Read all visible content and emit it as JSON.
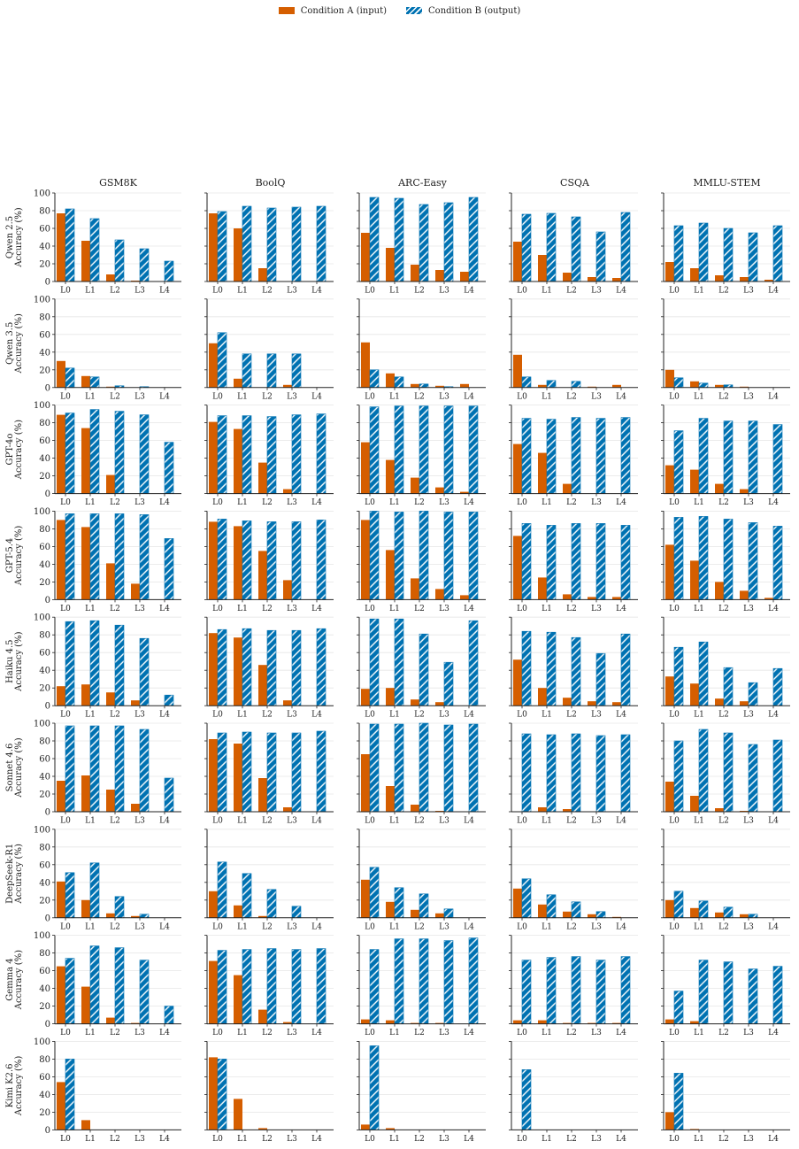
{
  "legend": {
    "a_label": "Condition A (input)",
    "b_label": "Condition B (output)"
  },
  "colors": {
    "a": "#d55e00",
    "b": "#0072b2",
    "grid": "#e6e6e6",
    "axis": "#222222"
  },
  "chart_data": {
    "type": "bar",
    "layout": "small-multiples grid, rows = models, columns = benchmarks, grouped bars",
    "ylabel": "Accuracy (%)",
    "ylim": [
      0,
      100
    ],
    "yticks": [
      "0",
      "20",
      "40",
      "60",
      "80",
      "100"
    ],
    "grid": true,
    "legend_position": "top-center",
    "categories": [
      "L0",
      "L1",
      "L2",
      "L3",
      "L4"
    ],
    "columns": [
      "GSM8K",
      "BoolQ",
      "ARC-Easy",
      "CSQA",
      "MMLU-STEM"
    ],
    "rows": [
      "Qwen 2.5",
      "Qwen 3.5",
      "GPT-4o",
      "GPT-5.4",
      "Haiku 4.5",
      "Sonnet 4.6",
      "DeepSeek-R1",
      "Gemma 4",
      "Kimi K2.6"
    ],
    "series_names": [
      "Condition A (input)",
      "Condition B (output)"
    ],
    "panels": [
      [
        {
          "a": [
            77,
            46,
            8,
            1,
            0
          ],
          "b": [
            82,
            71,
            47,
            37,
            23
          ]
        },
        {
          "a": [
            77,
            60,
            15,
            0,
            0
          ],
          "b": [
            79,
            85,
            83,
            84,
            85
          ]
        },
        {
          "a": [
            55,
            38,
            19,
            13,
            11
          ],
          "b": [
            95,
            94,
            87,
            89,
            95
          ]
        },
        {
          "a": [
            45,
            30,
            10,
            5,
            4
          ],
          "b": [
            76,
            77,
            73,
            56,
            78
          ]
        },
        {
          "a": [
            22,
            15,
            7,
            5,
            2
          ],
          "b": [
            63,
            66,
            60,
            55,
            63
          ]
        }
      ],
      [
        {
          "a": [
            30,
            13,
            1,
            0,
            0
          ],
          "b": [
            22,
            12,
            2,
            1,
            0
          ]
        },
        {
          "a": [
            50,
            10,
            0,
            3,
            0
          ],
          "b": [
            62,
            38,
            38,
            38,
            0
          ]
        },
        {
          "a": [
            51,
            16,
            4,
            2,
            4
          ],
          "b": [
            20,
            12,
            4,
            1,
            0
          ]
        },
        {
          "a": [
            37,
            3,
            0,
            1,
            3
          ],
          "b": [
            12,
            8,
            7,
            0,
            0
          ]
        },
        {
          "a": [
            20,
            7,
            3,
            1,
            0
          ],
          "b": [
            11,
            5,
            3,
            0,
            0
          ]
        }
      ],
      [
        {
          "a": [
            89,
            74,
            21,
            0,
            0
          ],
          "b": [
            91,
            95,
            93,
            89,
            58
          ]
        },
        {
          "a": [
            81,
            73,
            35,
            5,
            0
          ],
          "b": [
            88,
            88,
            87,
            89,
            90
          ]
        },
        {
          "a": [
            58,
            38,
            18,
            7,
            2
          ],
          "b": [
            98,
            99,
            99,
            99,
            99
          ]
        },
        {
          "a": [
            56,
            46,
            11,
            0,
            0
          ],
          "b": [
            85,
            84,
            86,
            85,
            86
          ]
        },
        {
          "a": [
            32,
            27,
            11,
            5,
            0
          ],
          "b": [
            71,
            85,
            82,
            82,
            78
          ]
        }
      ],
      [
        {
          "a": [
            90,
            82,
            41,
            18,
            0
          ],
          "b": [
            97,
            97,
            97,
            96,
            69
          ]
        },
        {
          "a": [
            88,
            83,
            55,
            22,
            0
          ],
          "b": [
            91,
            89,
            88,
            88,
            90
          ]
        },
        {
          "a": [
            90,
            56,
            24,
            12,
            5
          ],
          "b": [
            100,
            99,
            100,
            99,
            99
          ]
        },
        {
          "a": [
            72,
            25,
            6,
            3,
            3
          ],
          "b": [
            86,
            84,
            86,
            86,
            84
          ]
        },
        {
          "a": [
            62,
            44,
            20,
            10,
            2
          ],
          "b": [
            93,
            94,
            91,
            87,
            83
          ]
        }
      ],
      [
        {
          "a": [
            22,
            24,
            15,
            6,
            0
          ],
          "b": [
            95,
            96,
            91,
            76,
            12
          ]
        },
        {
          "a": [
            82,
            77,
            46,
            6,
            0
          ],
          "b": [
            86,
            87,
            85,
            85,
            87
          ]
        },
        {
          "a": [
            19,
            20,
            7,
            4,
            0
          ],
          "b": [
            98,
            98,
            81,
            49,
            96
          ]
        },
        {
          "a": [
            52,
            20,
            9,
            5,
            4
          ],
          "b": [
            84,
            83,
            77,
            59,
            81
          ]
        },
        {
          "a": [
            33,
            25,
            8,
            5,
            0
          ],
          "b": [
            66,
            72,
            43,
            26,
            42
          ]
        }
      ],
      [
        {
          "a": [
            35,
            41,
            25,
            9,
            0
          ],
          "b": [
            97,
            97,
            97,
            93,
            38
          ]
        },
        {
          "a": [
            82,
            77,
            38,
            5,
            0
          ],
          "b": [
            89,
            90,
            89,
            89,
            91
          ]
        },
        {
          "a": [
            65,
            29,
            8,
            1,
            0
          ],
          "b": [
            99,
            99,
            100,
            98,
            99
          ]
        },
        {
          "a": [
            0,
            5,
            3,
            0,
            0
          ],
          "b": [
            88,
            87,
            88,
            86,
            87
          ]
        },
        {
          "a": [
            34,
            18,
            4,
            1,
            0
          ],
          "b": [
            80,
            93,
            89,
            76,
            81
          ]
        }
      ],
      [
        {
          "a": [
            41,
            20,
            5,
            2,
            0
          ],
          "b": [
            51,
            62,
            24,
            4,
            0
          ]
        },
        {
          "a": [
            30,
            14,
            2,
            0,
            0
          ],
          "b": [
            63,
            50,
            32,
            13,
            0
          ]
        },
        {
          "a": [
            43,
            18,
            9,
            5,
            0
          ],
          "b": [
            57,
            34,
            27,
            10,
            0
          ]
        },
        {
          "a": [
            33,
            15,
            7,
            4,
            1
          ],
          "b": [
            44,
            26,
            18,
            7,
            0
          ]
        },
        {
          "a": [
            20,
            11,
            6,
            4,
            0
          ],
          "b": [
            30,
            19,
            12,
            4,
            0
          ]
        }
      ],
      [
        {
          "a": [
            65,
            42,
            7,
            1,
            0
          ],
          "b": [
            74,
            88,
            86,
            72,
            20
          ]
        },
        {
          "a": [
            71,
            55,
            16,
            2,
            0
          ],
          "b": [
            83,
            84,
            85,
            84,
            85
          ]
        },
        {
          "a": [
            5,
            4,
            1,
            1,
            0
          ],
          "b": [
            84,
            96,
            96,
            94,
            97
          ]
        },
        {
          "a": [
            4,
            4,
            1,
            1,
            1
          ],
          "b": [
            72,
            75,
            76,
            72,
            76
          ]
        },
        {
          "a": [
            5,
            3,
            0,
            0,
            0
          ],
          "b": [
            37,
            72,
            70,
            62,
            65
          ]
        }
      ],
      [
        {
          "a": [
            54,
            11,
            0,
            0,
            0
          ],
          "b": [
            80,
            0,
            0,
            0,
            0
          ]
        },
        {
          "a": [
            82,
            35,
            2,
            0,
            0
          ],
          "b": [
            80,
            0,
            0,
            0,
            0
          ]
        },
        {
          "a": [
            6,
            2,
            0,
            0,
            0
          ],
          "b": [
            95,
            0,
            0,
            0,
            0
          ]
        },
        {
          "a": [
            0,
            0,
            0,
            0,
            0
          ],
          "b": [
            68,
            0,
            0,
            0,
            0
          ]
        },
        {
          "a": [
            20,
            1,
            0,
            0,
            0
          ],
          "b": [
            64,
            0,
            0,
            0,
            0
          ]
        }
      ]
    ]
  }
}
